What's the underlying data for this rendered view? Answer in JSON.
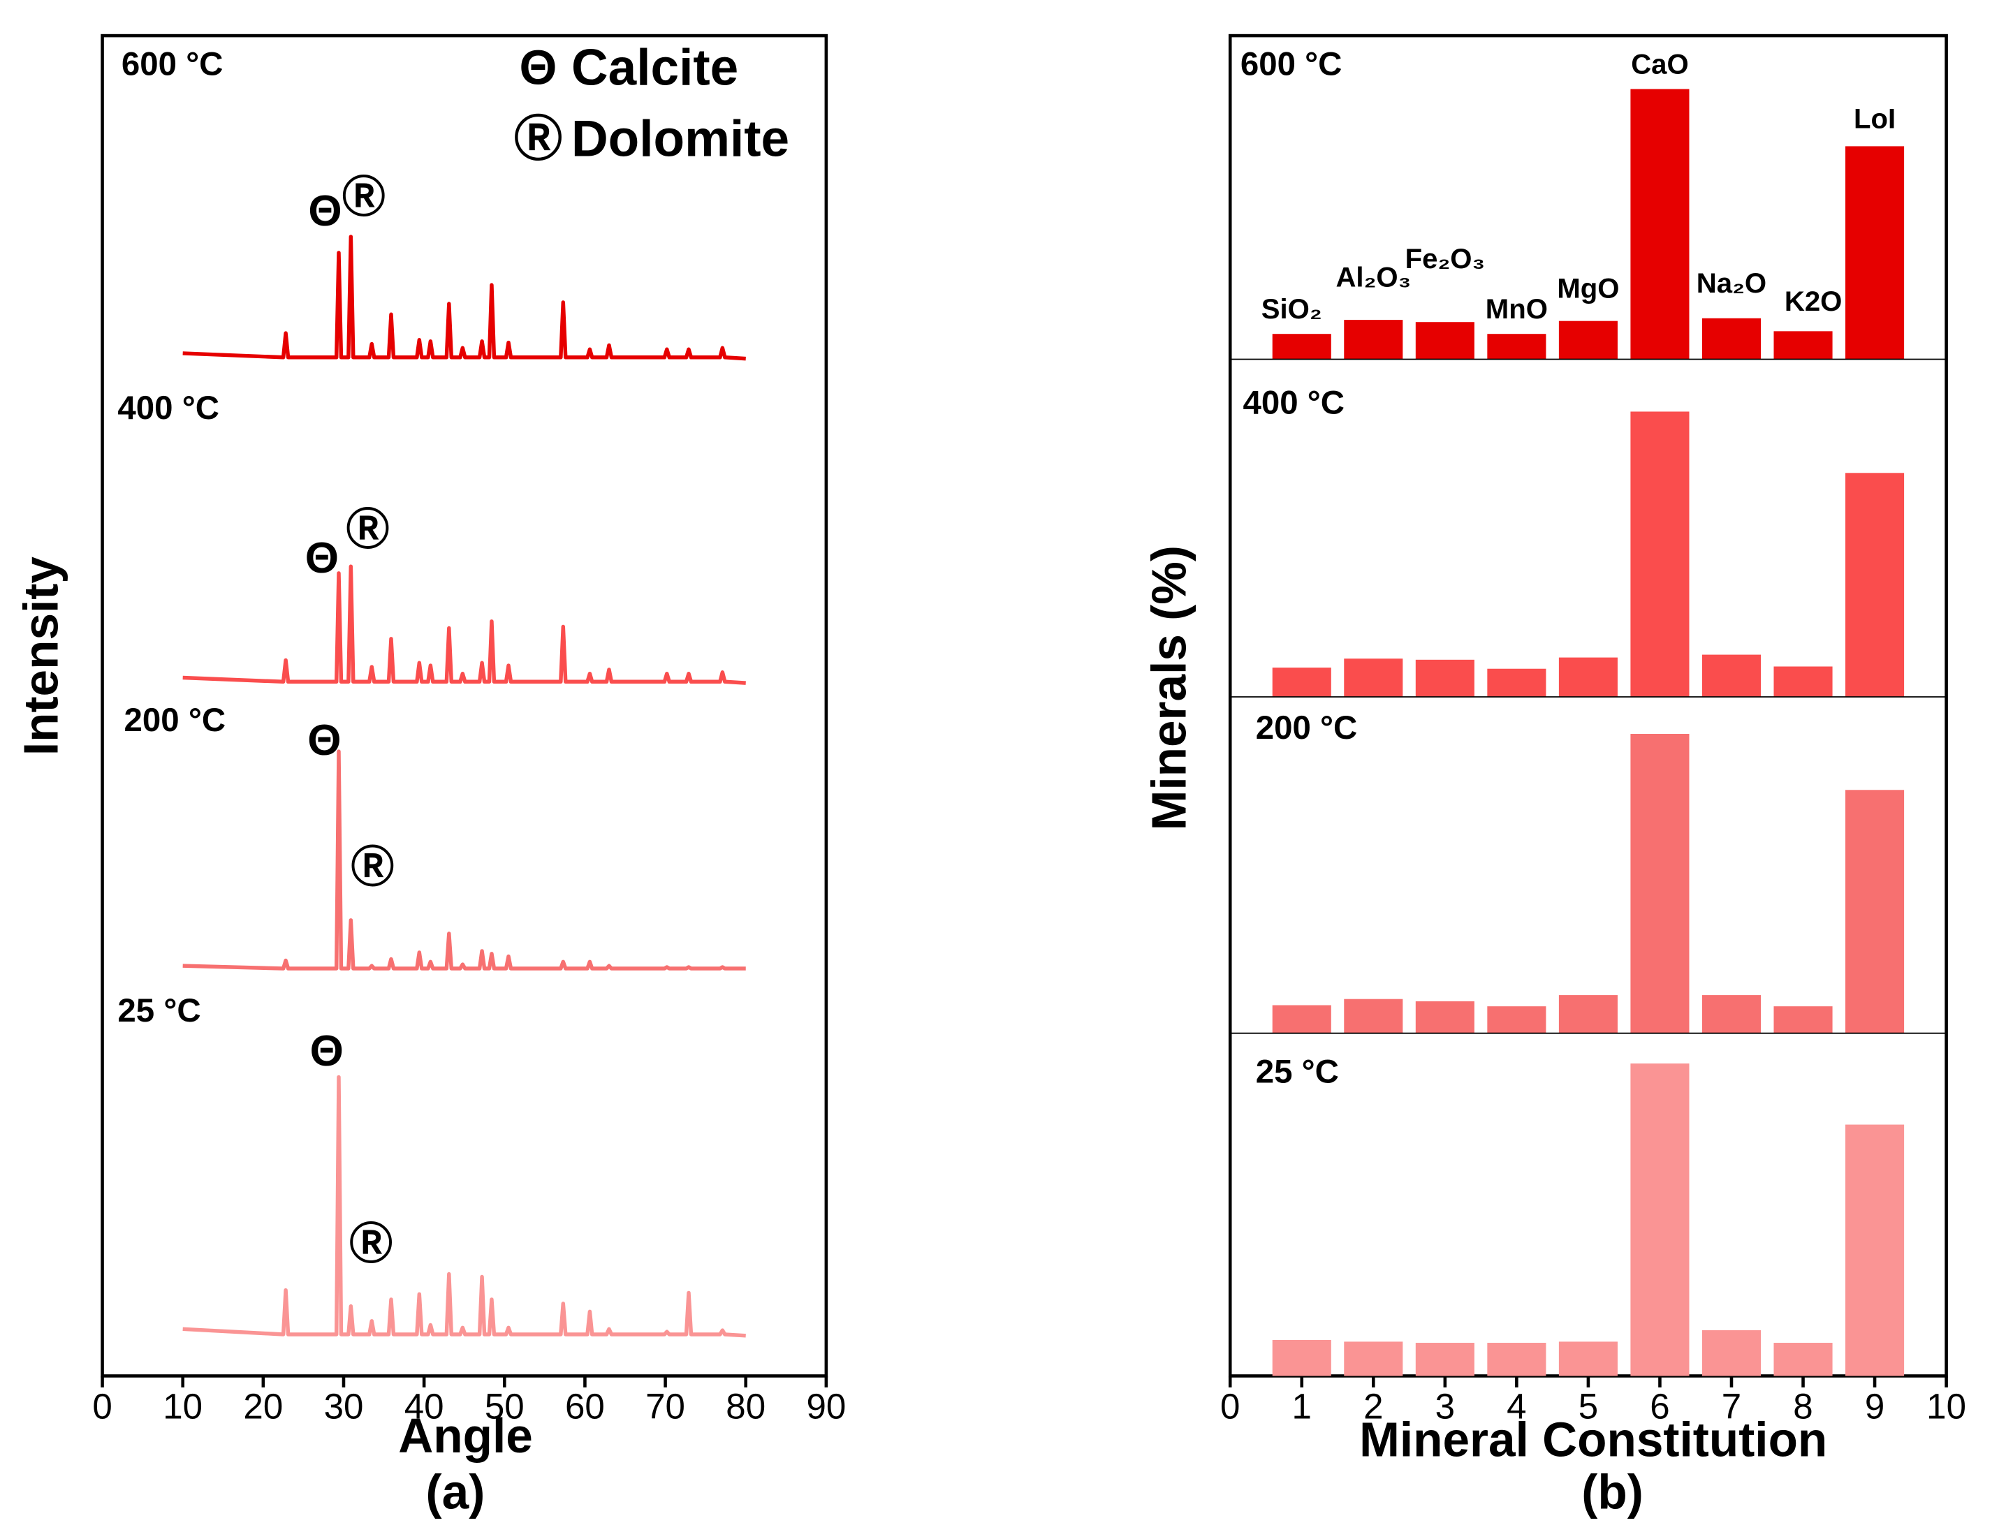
{
  "chart_data": [
    {
      "type": "line",
      "ylabel": "Intensity",
      "xlabel": "Angle",
      "caption": "(a)",
      "xlim": [
        0,
        90
      ],
      "xticks": [
        0,
        10,
        20,
        30,
        40,
        50,
        60,
        70,
        80,
        90
      ],
      "ylim": [
        0,
        100
      ],
      "legend": [
        {
          "symbol": "Θ",
          "label": "Calcite"
        },
        {
          "symbol": "Ⓡ",
          "label": "Dolomite"
        }
      ],
      "x": [
        10,
        22.5,
        22.8,
        23.1,
        29.1,
        29.4,
        29.7,
        30.6,
        30.9,
        31.2,
        33.2,
        33.5,
        33.8,
        35.6,
        35.9,
        36.2,
        39.1,
        39.4,
        39.7,
        40.5,
        40.8,
        41.1,
        42.8,
        43.1,
        43.4,
        44.5,
        44.8,
        45.1,
        46.9,
        47.2,
        47.5,
        48.1,
        48.4,
        48.7,
        50.2,
        50.5,
        50.8,
        57.0,
        57.3,
        57.6,
        60.3,
        60.6,
        60.9,
        62.7,
        63.0,
        63.3,
        69.9,
        70.2,
        70.5,
        72.6,
        72.9,
        73.2,
        76.8,
        77.1,
        77.4,
        80
      ],
      "series": [
        {
          "name": "600 °C",
          "color": "#e60000",
          "values": [
            76.3,
            76.0,
            77.8,
            76.0,
            76.0,
            83.8,
            76.0,
            76.0,
            85.0,
            76.0,
            76.0,
            77.0,
            76.0,
            76.0,
            79.2,
            76.0,
            76.0,
            77.3,
            76.0,
            76.0,
            77.2,
            76.0,
            76.0,
            80.0,
            76.0,
            76.0,
            76.7,
            76.0,
            76.0,
            77.2,
            76.0,
            76.0,
            81.4,
            76.0,
            76.0,
            77.1,
            76.0,
            76.0,
            80.1,
            76.0,
            76.0,
            76.6,
            76.0,
            76.0,
            76.9,
            76.0,
            76.0,
            76.6,
            76.0,
            76.0,
            76.6,
            76.0,
            76.0,
            76.7,
            76.0,
            75.9
          ]
        },
        {
          "name": "400 °C",
          "color": "#fa4d4d",
          "values": [
            52.1,
            51.8,
            53.4,
            51.8,
            51.8,
            59.9,
            51.8,
            51.8,
            60.4,
            51.8,
            51.8,
            52.9,
            51.8,
            51.8,
            55.0,
            51.8,
            51.8,
            53.2,
            51.8,
            51.8,
            53.0,
            51.8,
            51.8,
            55.8,
            51.8,
            51.8,
            52.4,
            51.8,
            51.8,
            53.2,
            51.8,
            51.8,
            56.3,
            51.8,
            51.8,
            53.0,
            51.8,
            51.8,
            55.9,
            51.8,
            51.8,
            52.4,
            51.8,
            51.8,
            52.7,
            51.8,
            51.8,
            52.4,
            51.8,
            51.8,
            52.4,
            51.8,
            51.8,
            52.5,
            51.8,
            51.7
          ]
        },
        {
          "name": "200 °C",
          "color": "#f77070",
          "values": [
            30.6,
            30.4,
            31.0,
            30.4,
            30.4,
            46.6,
            30.4,
            30.4,
            34.0,
            30.4,
            30.4,
            30.6,
            30.4,
            30.4,
            31.1,
            30.4,
            30.4,
            31.6,
            30.4,
            30.4,
            30.9,
            30.4,
            30.4,
            33.0,
            30.4,
            30.4,
            30.7,
            30.4,
            30.4,
            31.7,
            30.4,
            30.4,
            31.5,
            30.4,
            30.4,
            31.3,
            30.4,
            30.4,
            30.9,
            30.4,
            30.4,
            30.9,
            30.4,
            30.4,
            30.6,
            30.4,
            30.4,
            30.5,
            30.4,
            30.4,
            30.5,
            30.4,
            30.4,
            30.5,
            30.4,
            30.4
          ]
        },
        {
          "name": "25 °C",
          "color": "#fa9494",
          "values": [
            3.5,
            3.1,
            6.4,
            3.1,
            3.1,
            22.3,
            3.1,
            3.1,
            5.2,
            3.1,
            3.1,
            4.1,
            3.1,
            3.1,
            5.7,
            3.1,
            3.1,
            6.1,
            3.1,
            3.1,
            3.8,
            3.1,
            3.1,
            7.6,
            3.1,
            3.1,
            3.6,
            3.1,
            3.1,
            7.4,
            3.1,
            3.1,
            5.7,
            3.1,
            3.1,
            3.6,
            3.1,
            3.1,
            5.4,
            3.1,
            3.1,
            4.8,
            3.1,
            3.1,
            3.5,
            3.1,
            3.1,
            3.3,
            3.1,
            3.1,
            6.2,
            3.1,
            3.1,
            3.4,
            3.1,
            3.0
          ]
        }
      ],
      "annotations": [
        {
          "text": "Θ",
          "x": 27.7,
          "y": 86.7
        },
        {
          "text": "Ⓡ",
          "x": 32.5,
          "y": 87.7
        },
        {
          "text": "Θ",
          "x": 27.3,
          "y": 60.8
        },
        {
          "text": "Ⓡ",
          "x": 33.0,
          "y": 62.9
        },
        {
          "text": "Θ",
          "x": 27.6,
          "y": 47.2
        },
        {
          "text": "Ⓡ",
          "x": 33.6,
          "y": 37.7
        },
        {
          "text": "Θ",
          "x": 27.9,
          "y": 24.0
        },
        {
          "text": "Ⓡ",
          "x": 33.4,
          "y": 9.6
        }
      ]
    },
    {
      "type": "bar",
      "ylabel": "Minerals (%)",
      "xlabel": "Mineral Constitution",
      "caption": "(b)",
      "xlim": [
        0,
        10
      ],
      "xticks": [
        0,
        1,
        2,
        3,
        4,
        5,
        6,
        7,
        8,
        9,
        10
      ],
      "ylim": [
        0,
        60
      ],
      "x": [
        1,
        2,
        3,
        4,
        5,
        6,
        7,
        8,
        9
      ],
      "categories": [
        "SiO₂",
        "Al₂O₃",
        "Fe₂O₃",
        "MnO",
        "MgO",
        "CaO",
        "Na₂O",
        "K2O",
        "LoI"
      ],
      "series": [
        {
          "name": "600 °C",
          "color": "#e60000",
          "values": [
            4.7,
            7.3,
            6.9,
            4.7,
            7.1,
            50.1,
            7.6,
            5.2,
            39.5
          ]
        },
        {
          "name": "400 °C",
          "color": "#fa4d4d",
          "values": [
            5.2,
            6.8,
            6.6,
            5.0,
            7.0,
            50.7,
            7.5,
            5.4,
            39.8
          ]
        },
        {
          "name": "200 °C",
          "color": "#f77070",
          "values": [
            5.0,
            6.1,
            5.7,
            4.8,
            6.8,
            53.4,
            6.8,
            4.8,
            43.4
          ]
        },
        {
          "name": "25 °C",
          "color": "#fa9494",
          "values": [
            6.3,
            6.0,
            5.8,
            5.8,
            6.0,
            54.7,
            8.0,
            5.8,
            44.0
          ]
        }
      ]
    }
  ]
}
